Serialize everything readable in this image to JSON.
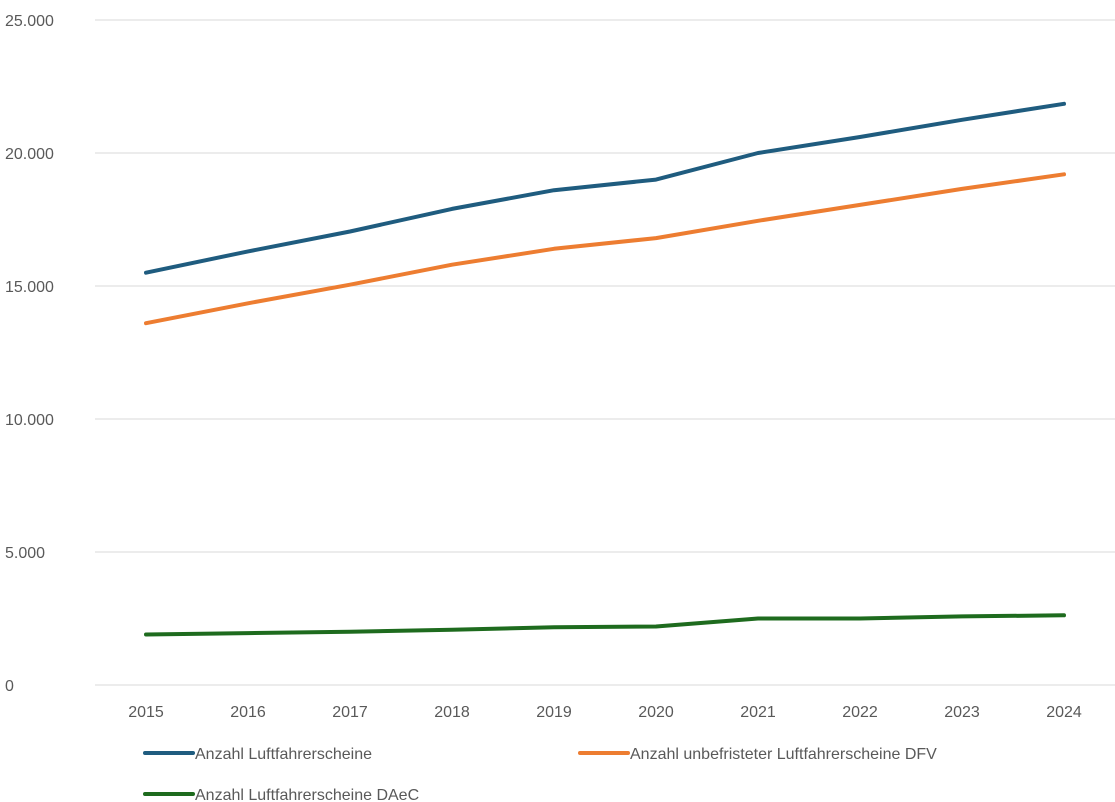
{
  "chart_data": {
    "type": "line",
    "title": "",
    "xlabel": "",
    "ylabel": "",
    "categories": [
      "2015",
      "2016",
      "2017",
      "2018",
      "2019",
      "2020",
      "2021",
      "2022",
      "2023",
      "2024"
    ],
    "ylim": [
      0,
      25000
    ],
    "yticks": [
      0,
      5000,
      10000,
      15000,
      20000,
      25000
    ],
    "ytick_labels": [
      "0",
      "5.000",
      "10.000",
      "15.000",
      "20.000",
      "25.000"
    ],
    "grid": true,
    "legend_position": "bottom",
    "series": [
      {
        "name": "Anzahl Luftfahrerscheine",
        "color": "#1f5c7f",
        "values": [
          15500,
          16300,
          17050,
          17900,
          18600,
          19000,
          20000,
          20600,
          21250,
          21850
        ]
      },
      {
        "name": "Anzahl unbefristeter Luftfahrerscheine DFV",
        "color": "#ed7d31",
        "values": [
          13600,
          14350,
          15050,
          15800,
          16400,
          16800,
          17450,
          18050,
          18650,
          19200
        ]
      },
      {
        "name": "Anzahl Luftfahrerscheine DAeC",
        "color": "#1e6b1e",
        "values": [
          1900,
          1950,
          2000,
          2080,
          2170,
          2200,
          2500,
          2500,
          2580,
          2620
        ]
      }
    ]
  }
}
